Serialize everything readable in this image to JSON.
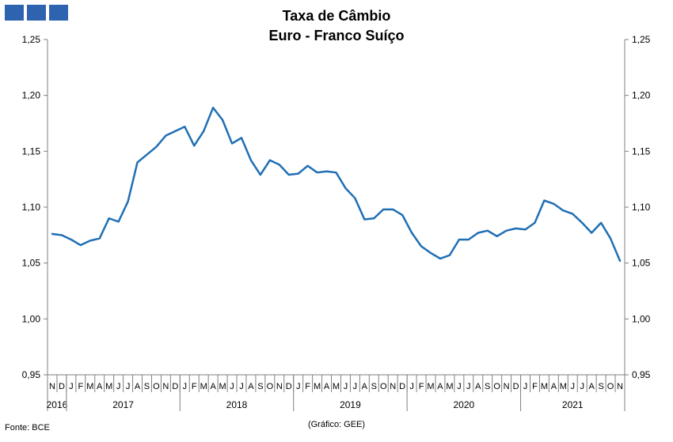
{
  "title_line1": "Taxa de Câmbio",
  "title_line2": "Euro - Franco Suíço",
  "source": "Fonte: BCE",
  "credit": "(Gráfico: GEE)",
  "colors": {
    "line": "#1f6fb5",
    "logo": "#2e63b0",
    "axis": "#808080"
  },
  "chart_data": {
    "type": "line",
    "ylim": [
      0.95,
      1.25
    ],
    "yticks": [
      "1,25",
      "1,20",
      "1,15",
      "1,10",
      "1,05",
      "1,00",
      "0,95"
    ],
    "ytick_values": [
      1.25,
      1.2,
      1.15,
      1.1,
      1.05,
      1.0,
      0.95
    ],
    "grid": false,
    "month_labels": [
      "N",
      "D",
      "J",
      "F",
      "M",
      "A",
      "M",
      "J",
      "J",
      "A",
      "S",
      "O",
      "N",
      "D",
      "J",
      "F",
      "M",
      "A",
      "M",
      "J",
      "J",
      "A",
      "S",
      "O",
      "N",
      "D",
      "J",
      "F",
      "M",
      "A",
      "M",
      "J",
      "J",
      "A",
      "S",
      "O",
      "N",
      "D",
      "J",
      "F",
      "M",
      "A",
      "M",
      "J",
      "J",
      "A",
      "S",
      "O",
      "N",
      "D",
      "J",
      "F",
      "M",
      "A",
      "M",
      "J",
      "J",
      "A",
      "S",
      "O",
      "N"
    ],
    "years": [
      {
        "label": "2016",
        "months": 2
      },
      {
        "label": "2017",
        "months": 12
      },
      {
        "label": "2018",
        "months": 12
      },
      {
        "label": "2019",
        "months": 12
      },
      {
        "label": "2020",
        "months": 12
      },
      {
        "label": "2021",
        "months": 11
      }
    ],
    "series": [
      {
        "values": [
          1.076,
          1.075,
          1.071,
          1.066,
          1.07,
          1.072,
          1.09,
          1.087,
          1.105,
          1.14,
          1.147,
          1.154,
          1.164,
          1.168,
          1.172,
          1.155,
          1.168,
          1.189,
          1.178,
          1.157,
          1.162,
          1.142,
          1.129,
          1.142,
          1.138,
          1.129,
          1.13,
          1.137,
          1.131,
          1.132,
          1.131,
          1.117,
          1.108,
          1.089,
          1.09,
          1.098,
          1.098,
          1.093,
          1.077,
          1.065,
          1.059,
          1.054,
          1.057,
          1.071,
          1.071,
          1.077,
          1.079,
          1.074,
          1.079,
          1.081,
          1.08,
          1.086,
          1.106,
          1.103,
          1.097,
          1.094,
          1.086,
          1.077,
          1.086,
          1.072,
          1.052
        ]
      }
    ]
  }
}
